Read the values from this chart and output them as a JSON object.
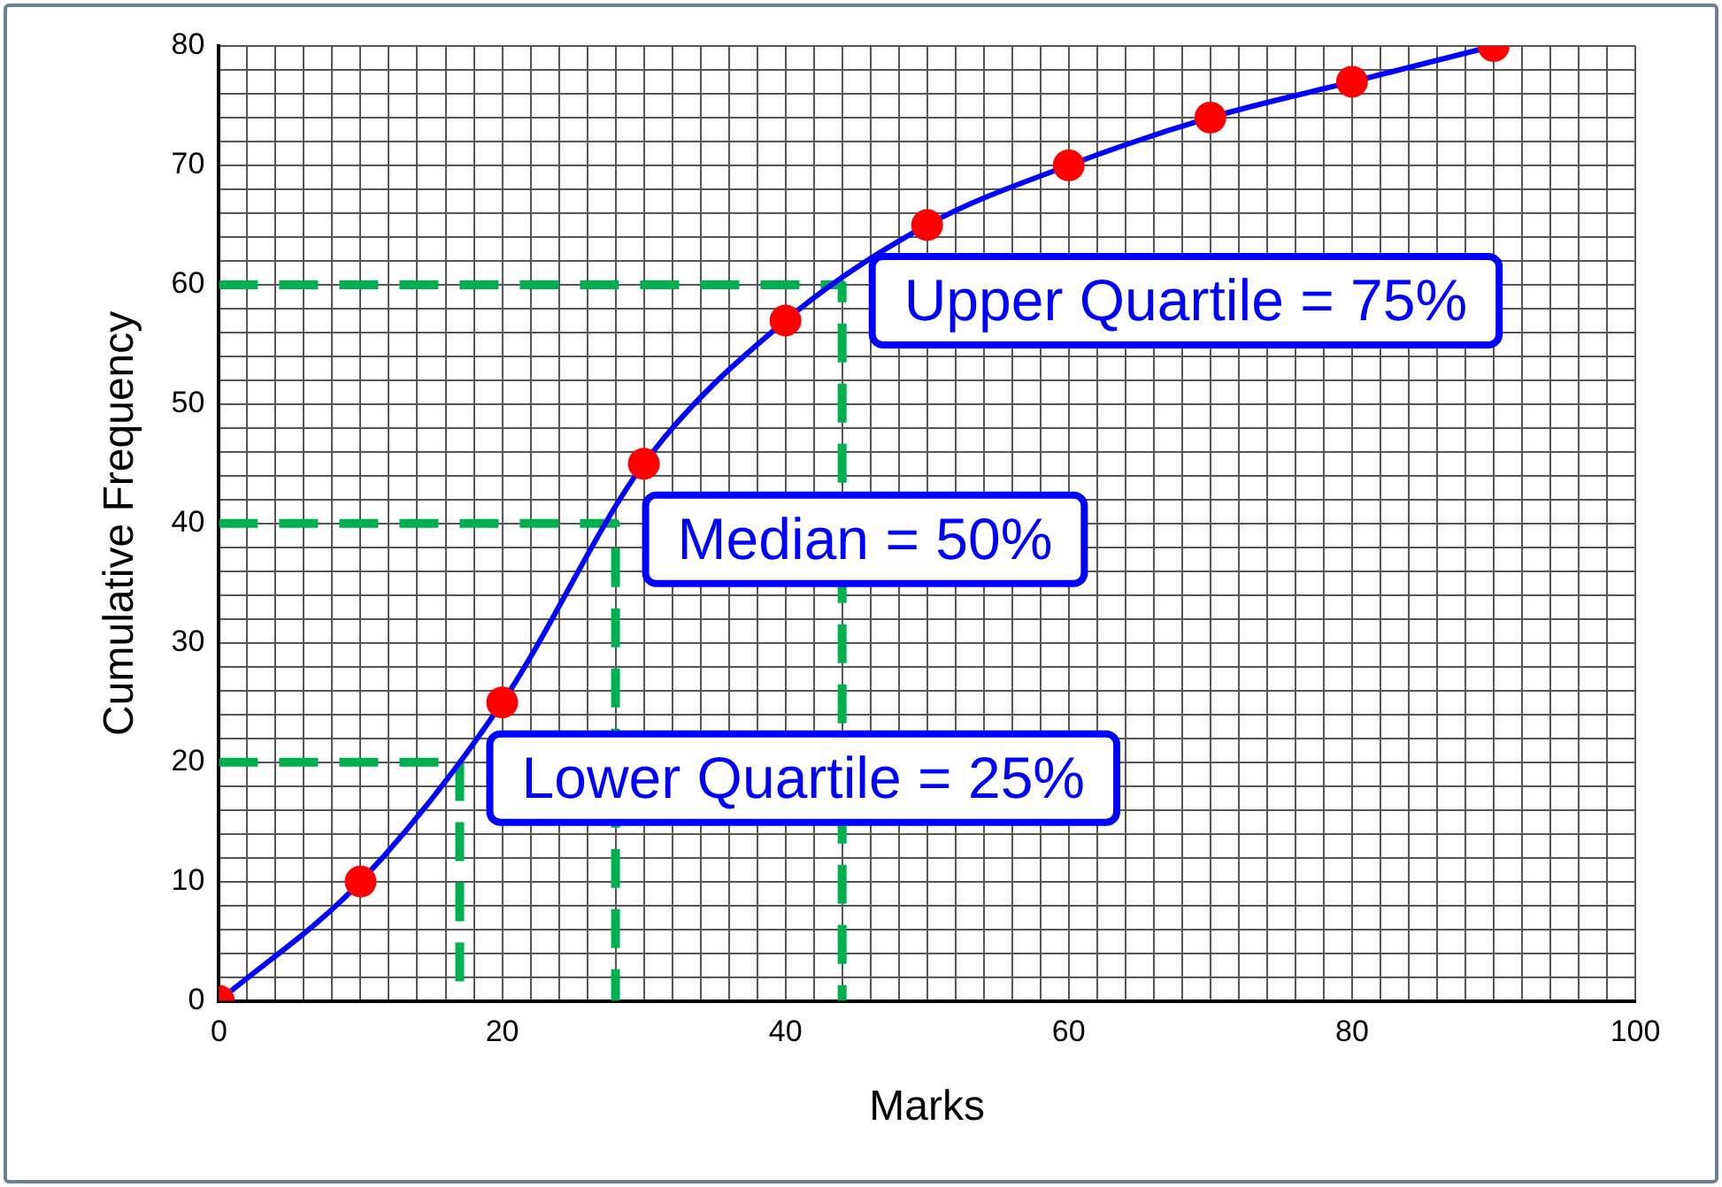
{
  "chart_data": {
    "type": "line",
    "xlabel": "Marks",
    "ylabel": "Cumulative Frequency",
    "xlim": [
      0,
      100
    ],
    "ylim": [
      0,
      80
    ],
    "xticks": [
      0,
      {
        "value": 2,
        "label": null
      },
      {
        "value": 4,
        "label": null
      },
      {
        "value": 6,
        "label": null
      },
      {
        "value": 8,
        "label": null
      },
      {
        "value": 10,
        "label": null
      },
      {
        "value": 12,
        "label": null
      },
      {
        "value": 14,
        "label": null
      },
      {
        "value": 16,
        "label": null
      },
      {
        "value": 18,
        "label": null
      },
      20,
      {
        "value": 22,
        "label": null
      },
      {
        "value": 24,
        "label": null
      },
      {
        "value": 26,
        "label": null
      },
      {
        "value": 28,
        "label": null
      },
      {
        "value": 30,
        "label": null
      },
      {
        "value": 32,
        "label": null
      },
      {
        "value": 34,
        "label": null
      },
      {
        "value": 36,
        "label": null
      },
      {
        "value": 38,
        "label": null
      },
      40,
      {
        "value": 42,
        "label": null
      },
      {
        "value": 44,
        "label": null
      },
      {
        "value": 46,
        "label": null
      },
      {
        "value": 48,
        "label": null
      },
      {
        "value": 50,
        "label": null
      },
      {
        "value": 52,
        "label": null
      },
      {
        "value": 54,
        "label": null
      },
      {
        "value": 56,
        "label": null
      },
      {
        "value": 58,
        "label": null
      },
      60,
      {
        "value": 62,
        "label": null
      },
      {
        "value": 64,
        "label": null
      },
      {
        "value": 66,
        "label": null
      },
      {
        "value": 68,
        "label": null
      },
      {
        "value": 70,
        "label": null
      },
      {
        "value": 72,
        "label": null
      },
      {
        "value": 74,
        "label": null
      },
      {
        "value": 76,
        "label": null
      },
      {
        "value": 78,
        "label": null
      },
      80,
      {
        "value": 82,
        "label": null
      },
      {
        "value": 84,
        "label": null
      },
      {
        "value": 86,
        "label": null
      },
      {
        "value": 88,
        "label": null
      },
      {
        "value": 90,
        "label": null
      },
      {
        "value": 92,
        "label": null
      },
      {
        "value": 94,
        "label": null
      },
      {
        "value": 96,
        "label": null
      },
      {
        "value": 98,
        "label": null
      },
      100
    ],
    "yticks": [
      0,
      {
        "value": 2,
        "label": null
      },
      {
        "value": 4,
        "label": null
      },
      {
        "value": 6,
        "label": null
      },
      {
        "value": 8,
        "label": null
      },
      10,
      {
        "value": 12,
        "label": null
      },
      {
        "value": 14,
        "label": null
      },
      {
        "value": 16,
        "label": null
      },
      {
        "value": 18,
        "label": null
      },
      20,
      {
        "value": 22,
        "label": null
      },
      {
        "value": 24,
        "label": null
      },
      {
        "value": 26,
        "label": null
      },
      {
        "value": 28,
        "label": null
      },
      30,
      {
        "value": 32,
        "label": null
      },
      {
        "value": 34,
        "label": null
      },
      {
        "value": 36,
        "label": null
      },
      {
        "value": 38,
        "label": null
      },
      40,
      {
        "value": 42,
        "label": null
      },
      {
        "value": 44,
        "label": null
      },
      {
        "value": 46,
        "label": null
      },
      {
        "value": 48,
        "label": null
      },
      50,
      {
        "value": 52,
        "label": null
      },
      {
        "value": 54,
        "label": null
      },
      {
        "value": 56,
        "label": null
      },
      {
        "value": 58,
        "label": null
      },
      60,
      {
        "value": 62,
        "label": null
      },
      {
        "value": 64,
        "label": null
      },
      {
        "value": 66,
        "label": null
      },
      {
        "value": 68,
        "label": null
      },
      70,
      {
        "value": 72,
        "label": null
      },
      {
        "value": 74,
        "label": null
      },
      {
        "value": 76,
        "label": null
      },
      {
        "value": 78,
        "label": null
      },
      80
    ],
    "grid": true,
    "legend": false,
    "marker": "circle",
    "line_style": "solid",
    "series": [
      {
        "color": "#0000ff",
        "x": [
          0,
          10,
          20,
          30,
          40,
          50,
          60,
          70,
          80,
          90
        ],
        "values": [
          0,
          10,
          25,
          45,
          57,
          65,
          70,
          74,
          77,
          80
        ]
      },
      {
        "color": "#00b050",
        "line_style": "dashed",
        "marker": "none",
        "x": [
          0,
          17,
          17
        ],
        "values": [
          20,
          20,
          0
        ]
      },
      {
        "color": "#00b050",
        "line_style": "dashed",
        "marker": "none",
        "x": [
          0,
          28,
          28
        ],
        "values": [
          40,
          40,
          0
        ]
      },
      {
        "color": "#00b050",
        "line_style": "dashed",
        "marker": "none",
        "x": [
          0,
          44,
          44
        ],
        "values": [
          60,
          60,
          0
        ]
      }
    ],
    "annotations": [
      "Lower Quartile = 25%",
      "Median = 50%",
      "Upper Quartile = 75%"
    ]
  }
}
